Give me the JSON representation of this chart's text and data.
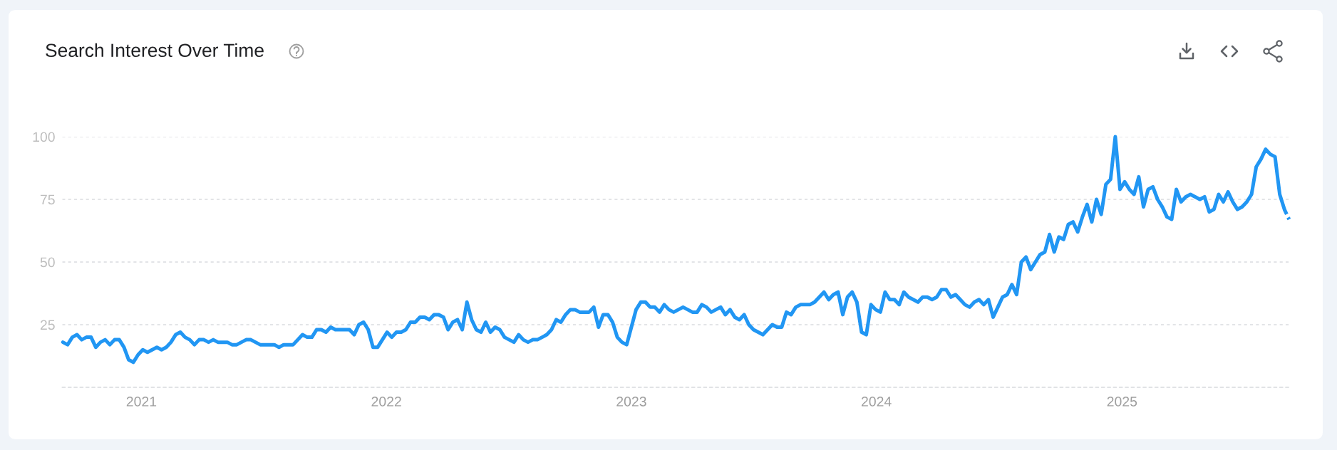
{
  "chart_data": {
    "type": "line",
    "title": "Search Interest Over Time",
    "series": [
      {
        "color": "#2196f3",
        "x": [
          "2020-09-06",
          "2020-09-13",
          "2020-09-20",
          "2020-09-27",
          "2020-10-04",
          "2020-10-11",
          "2020-10-18",
          "2020-10-25",
          "2020-11-01",
          "2020-11-08",
          "2020-11-15",
          "2020-11-22",
          "2020-11-29",
          "2020-12-06",
          "2020-12-13",
          "2020-12-20",
          "2020-12-27",
          "2021-01-03",
          "2021-01-10",
          "2021-01-17",
          "2021-01-24",
          "2021-01-31",
          "2021-02-07",
          "2021-02-14",
          "2021-02-21",
          "2021-02-28",
          "2021-03-07",
          "2021-03-14",
          "2021-03-21",
          "2021-03-28",
          "2021-04-04",
          "2021-04-11",
          "2021-04-18",
          "2021-04-25",
          "2021-05-02",
          "2021-05-09",
          "2021-05-16",
          "2021-05-23",
          "2021-05-30",
          "2021-06-06",
          "2021-06-13",
          "2021-06-20",
          "2021-06-27",
          "2021-07-04",
          "2021-07-11",
          "2021-07-18",
          "2021-07-25",
          "2021-08-01",
          "2021-08-08",
          "2021-08-15",
          "2021-08-22",
          "2021-08-29",
          "2021-09-05",
          "2021-09-12",
          "2021-09-19",
          "2021-09-26",
          "2021-10-03",
          "2021-10-10",
          "2021-10-17",
          "2021-10-24",
          "2021-10-31",
          "2021-11-07",
          "2021-11-14",
          "2021-11-21",
          "2021-11-28",
          "2021-12-05",
          "2021-12-12",
          "2021-12-19",
          "2021-12-26",
          "2022-01-02",
          "2022-01-09",
          "2022-01-16",
          "2022-01-23",
          "2022-01-30",
          "2022-02-06",
          "2022-02-13",
          "2022-02-20",
          "2022-02-27",
          "2022-03-06",
          "2022-03-13",
          "2022-03-20",
          "2022-03-27",
          "2022-04-03",
          "2022-04-10",
          "2022-04-17",
          "2022-04-24",
          "2022-05-01",
          "2022-05-08",
          "2022-05-15",
          "2022-05-22",
          "2022-05-29",
          "2022-06-05",
          "2022-06-12",
          "2022-06-19",
          "2022-06-26",
          "2022-07-03",
          "2022-07-10",
          "2022-07-17",
          "2022-07-24",
          "2022-07-31",
          "2022-08-07",
          "2022-08-14",
          "2022-08-21",
          "2022-08-28",
          "2022-09-04",
          "2022-09-11",
          "2022-09-18",
          "2022-09-25",
          "2022-10-02",
          "2022-10-09",
          "2022-10-16",
          "2022-10-23",
          "2022-10-30",
          "2022-11-06",
          "2022-11-13",
          "2022-11-20",
          "2022-11-27",
          "2022-12-04",
          "2022-12-11",
          "2022-12-18",
          "2022-12-25",
          "2023-01-01",
          "2023-01-08",
          "2023-01-15",
          "2023-01-22",
          "2023-01-29",
          "2023-02-05",
          "2023-02-12",
          "2023-02-19",
          "2023-02-26",
          "2023-03-05",
          "2023-03-12",
          "2023-03-19",
          "2023-03-26",
          "2023-04-02",
          "2023-04-09",
          "2023-04-16",
          "2023-04-23",
          "2023-04-30",
          "2023-05-07",
          "2023-05-14",
          "2023-05-21",
          "2023-05-28",
          "2023-06-04",
          "2023-06-11",
          "2023-06-18",
          "2023-06-25",
          "2023-07-02",
          "2023-07-09",
          "2023-07-16",
          "2023-07-23",
          "2023-07-30",
          "2023-08-06",
          "2023-08-13",
          "2023-08-20",
          "2023-08-27",
          "2023-09-03",
          "2023-09-10",
          "2023-09-17",
          "2023-09-24",
          "2023-10-01",
          "2023-10-08",
          "2023-10-15",
          "2023-10-22",
          "2023-10-29",
          "2023-11-05",
          "2023-11-12",
          "2023-11-19",
          "2023-11-26",
          "2023-12-03",
          "2023-12-10",
          "2023-12-17",
          "2023-12-24",
          "2023-12-31",
          "2024-01-07",
          "2024-01-14",
          "2024-01-21",
          "2024-01-28",
          "2024-02-04",
          "2024-02-11",
          "2024-02-18",
          "2024-02-25",
          "2024-03-03",
          "2024-03-10",
          "2024-03-17",
          "2024-03-24",
          "2024-03-31",
          "2024-04-07",
          "2024-04-14",
          "2024-04-21",
          "2024-04-28",
          "2024-05-05",
          "2024-05-12",
          "2024-05-19",
          "2024-05-26",
          "2024-06-02",
          "2024-06-09",
          "2024-06-16",
          "2024-06-23",
          "2024-06-30",
          "2024-07-07",
          "2024-07-14",
          "2024-07-21",
          "2024-07-28",
          "2024-08-04",
          "2024-08-11",
          "2024-08-18",
          "2024-08-25",
          "2024-09-01",
          "2024-09-08",
          "2024-09-15",
          "2024-09-22",
          "2024-09-29",
          "2024-10-06",
          "2024-10-13",
          "2024-10-20",
          "2024-10-27",
          "2024-11-03",
          "2024-11-10",
          "2024-11-17",
          "2024-11-24",
          "2024-12-01",
          "2024-12-08",
          "2024-12-15",
          "2024-12-22",
          "2024-12-29",
          "2025-01-05",
          "2025-01-12",
          "2025-01-19",
          "2025-01-26",
          "2025-02-02",
          "2025-02-09",
          "2025-02-16",
          "2025-02-23",
          "2025-03-02",
          "2025-03-09",
          "2025-03-16",
          "2025-03-23",
          "2025-03-30",
          "2025-04-06",
          "2025-04-13",
          "2025-04-20",
          "2025-04-27",
          "2025-05-04",
          "2025-05-11",
          "2025-05-18",
          "2025-05-25",
          "2025-06-01",
          "2025-06-08",
          "2025-06-15",
          "2025-06-22",
          "2025-06-29",
          "2025-07-06",
          "2025-07-13",
          "2025-07-20",
          "2025-07-27",
          "2025-08-03",
          "2025-08-10",
          "2025-08-17",
          "2025-08-24",
          "2025-08-31"
        ],
        "values": [
          18,
          17,
          20,
          21,
          19,
          20,
          20,
          16,
          18,
          19,
          17,
          19,
          19,
          16,
          11,
          10,
          13,
          15,
          14,
          15,
          16,
          15,
          16,
          18,
          21,
          22,
          20,
          19,
          17,
          19,
          19,
          18,
          19,
          18,
          18,
          18,
          17,
          17,
          18,
          19,
          19,
          18,
          17,
          17,
          17,
          17,
          16,
          17,
          17,
          17,
          19,
          21,
          20,
          20,
          23,
          23,
          22,
          24,
          23,
          23,
          23,
          23,
          21,
          25,
          26,
          23,
          16,
          16,
          19,
          22,
          20,
          22,
          22,
          23,
          26,
          26,
          28,
          28,
          27,
          29,
          29,
          28,
          23,
          26,
          27,
          23,
          34,
          27,
          23,
          22,
          26,
          22,
          24,
          23,
          20,
          19,
          18,
          21,
          19,
          18,
          19,
          19,
          20,
          21,
          23,
          27,
          26,
          29,
          31,
          31,
          30,
          30,
          30,
          32,
          24,
          29,
          29,
          26,
          20,
          18,
          17,
          24,
          31,
          34,
          34,
          32,
          32,
          30,
          33,
          31,
          30,
          31,
          32,
          31,
          30,
          30,
          33,
          32,
          30,
          31,
          32,
          29,
          31,
          28,
          27,
          29,
          25,
          23,
          22,
          21,
          23,
          25,
          24,
          24,
          30,
          29,
          32,
          33,
          33,
          33,
          34,
          36,
          38,
          35,
          37,
          38,
          29,
          36,
          38,
          34,
          22,
          21,
          33,
          31,
          30,
          38,
          35,
          35,
          33,
          38,
          36,
          35,
          34,
          36,
          36,
          35,
          36,
          39,
          39,
          36,
          37,
          35,
          33,
          32,
          34,
          35,
          33,
          35,
          28,
          32,
          36,
          37,
          41,
          37,
          50,
          52,
          47,
          50,
          53,
          54,
          61,
          54,
          60,
          59,
          65,
          66,
          62,
          68,
          73,
          66,
          75,
          69,
          81,
          83,
          100,
          79,
          82,
          79,
          77,
          84,
          72,
          79,
          80,
          75,
          72,
          68,
          67,
          79,
          74,
          76,
          77,
          76,
          75,
          76,
          70,
          71,
          77,
          74,
          78,
          74,
          71,
          72,
          74,
          77,
          88,
          91,
          95,
          93,
          92,
          77,
          71
        ]
      },
      {
        "color": "#2196f3",
        "line_style": "dashed",
        "x": [
          "2025-08-31",
          "2025-09-07"
        ],
        "values": [
          71,
          67
        ]
      }
    ],
    "line_style": "solid",
    "xlim": [
      "2020-09-05",
      "2025-09-09"
    ],
    "xticks": [
      {
        "value": "2021-01-01",
        "label": "2021"
      },
      {
        "value": "2022-01-01",
        "label": "2022"
      },
      {
        "value": "2023-01-01",
        "label": "2023"
      },
      {
        "value": "2024-01-01",
        "label": "2024"
      },
      {
        "value": "2025-01-01",
        "label": "2025"
      }
    ],
    "ylim": [
      0,
      100
    ],
    "yticks": [
      {
        "value": 0,
        "label": null
      },
      25,
      50,
      75,
      100
    ],
    "grid": "y"
  }
}
